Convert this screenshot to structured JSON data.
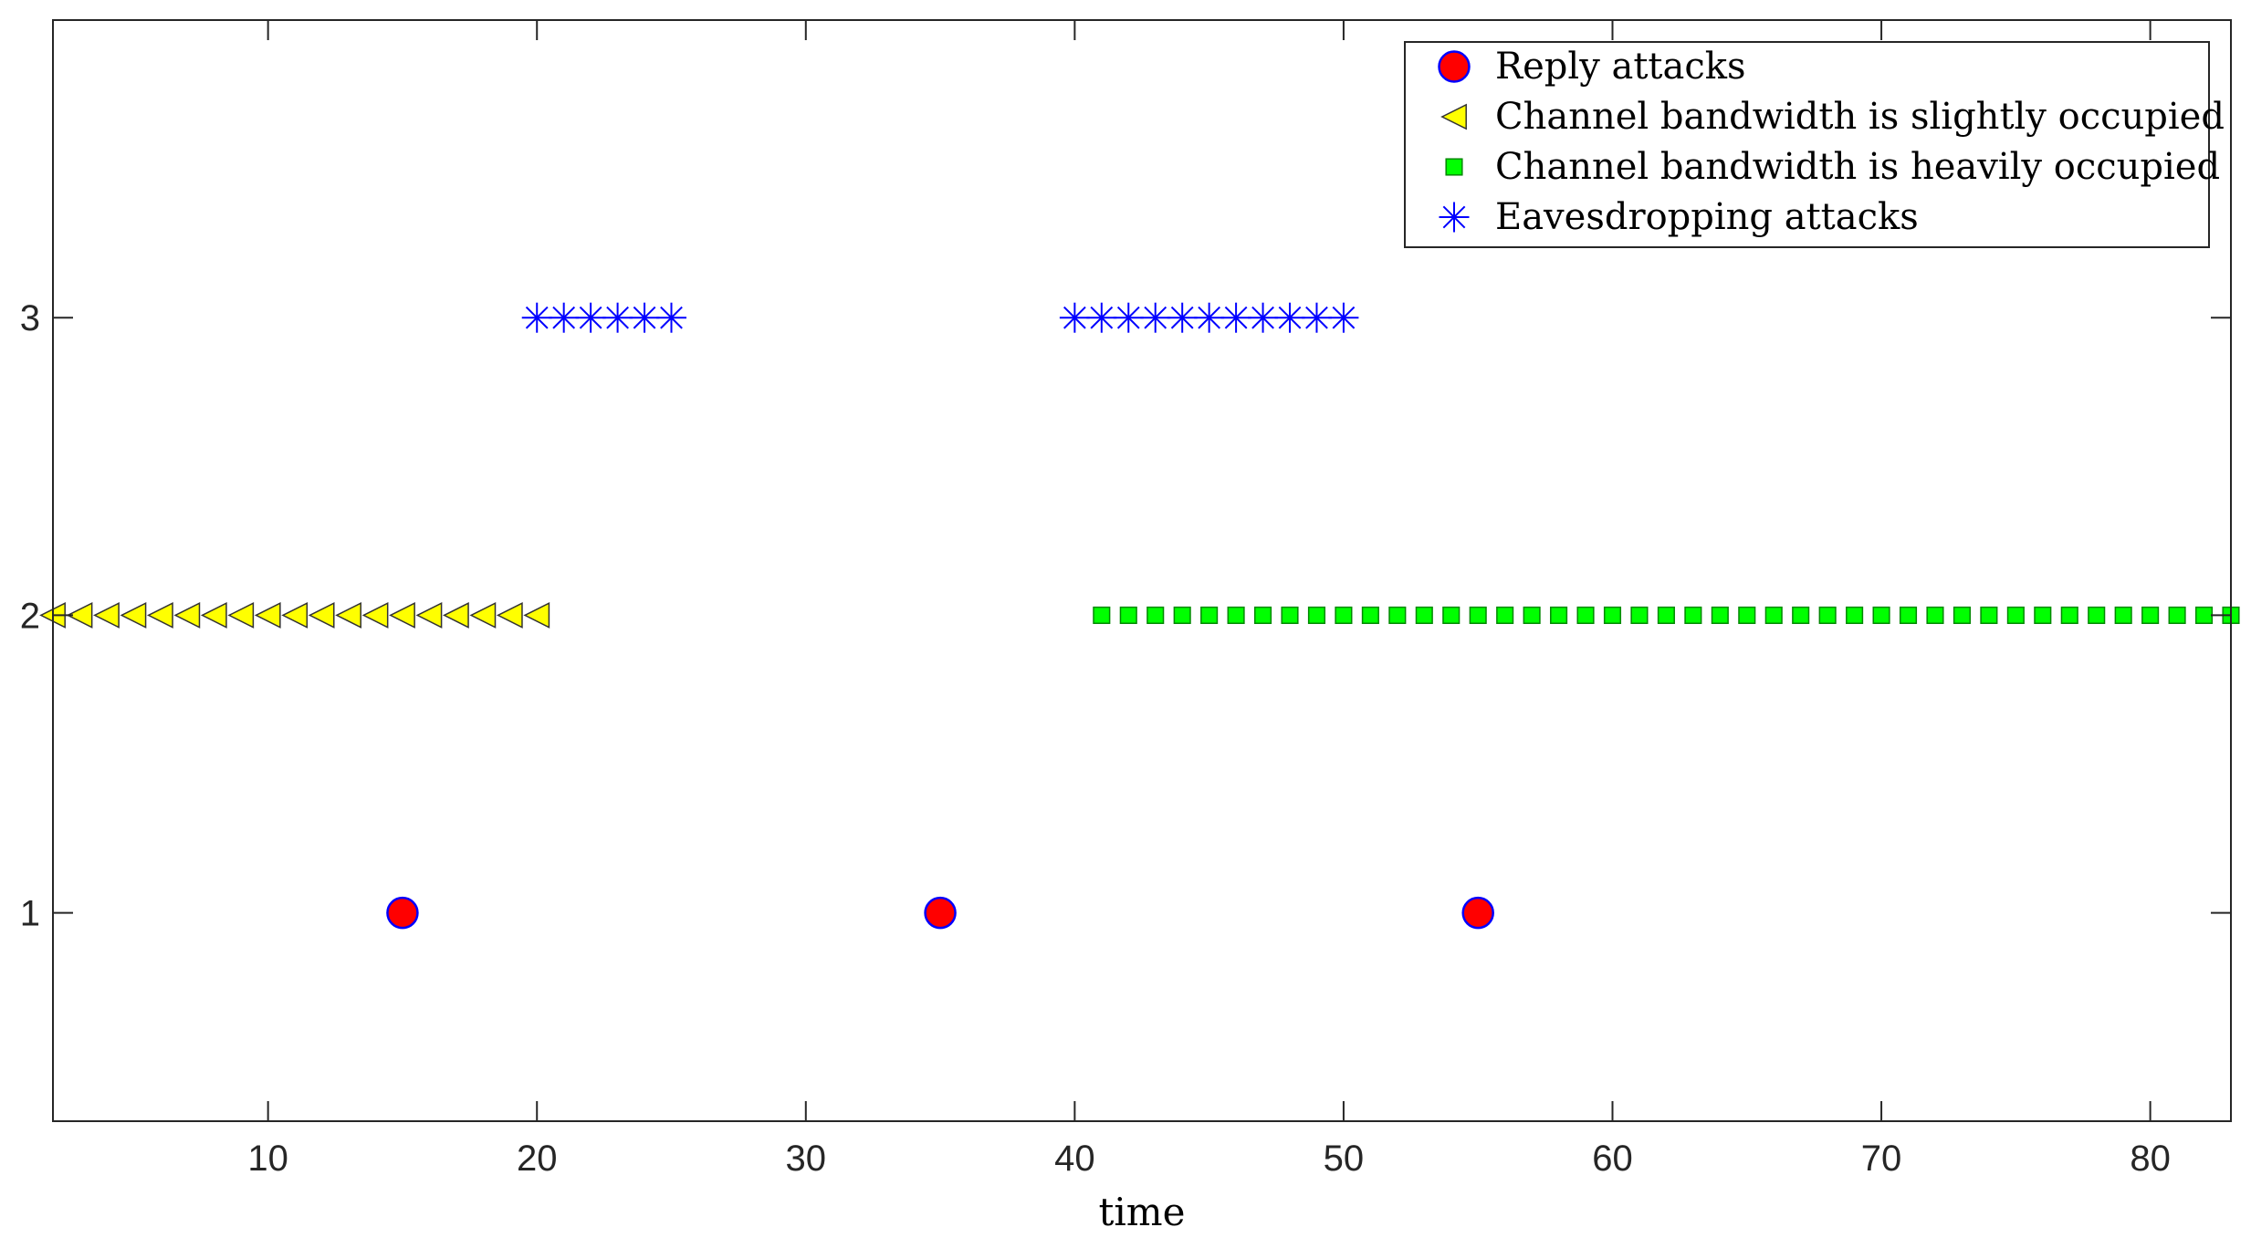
{
  "chart_data": {
    "type": "scatter",
    "title": "",
    "xlabel": "time",
    "ylabel": "",
    "xlim": [
      2,
      83
    ],
    "ylim": [
      0.3,
      4
    ],
    "xticks": [
      10,
      20,
      30,
      40,
      50,
      60,
      70,
      80
    ],
    "yticks": [
      1,
      2,
      3
    ],
    "grid": false,
    "legend_position": "top-right",
    "series": [
      {
        "name": "Reply attacks",
        "marker": "circle",
        "color": "#ff0000",
        "edge_color": "#0000ff",
        "x": [
          15,
          35,
          55
        ],
        "y": [
          1,
          1,
          1
        ]
      },
      {
        "name": "Channel bandwidth is slightly occupied",
        "marker": "triangle-left",
        "color": "#ffff00",
        "edge_color": "#333333",
        "x": [
          2,
          3,
          4,
          5,
          6,
          7,
          8,
          9,
          10,
          11,
          12,
          13,
          14,
          15,
          16,
          17,
          18,
          19,
          20
        ],
        "y": [
          2,
          2,
          2,
          2,
          2,
          2,
          2,
          2,
          2,
          2,
          2,
          2,
          2,
          2,
          2,
          2,
          2,
          2,
          2
        ]
      },
      {
        "name": "Channel bandwidth is heavily occupied",
        "marker": "square",
        "color": "#00ff00",
        "edge_color": "#008800",
        "x": [
          41,
          42,
          43,
          44,
          45,
          46,
          47,
          48,
          49,
          50,
          51,
          52,
          53,
          54,
          55,
          56,
          57,
          58,
          59,
          60,
          61,
          62,
          63,
          64,
          65,
          66,
          67,
          68,
          69,
          70,
          71,
          72,
          73,
          74,
          75,
          76,
          77,
          78,
          79,
          80,
          81,
          82,
          83
        ],
        "y": [
          2,
          2,
          2,
          2,
          2,
          2,
          2,
          2,
          2,
          2,
          2,
          2,
          2,
          2,
          2,
          2,
          2,
          2,
          2,
          2,
          2,
          2,
          2,
          2,
          2,
          2,
          2,
          2,
          2,
          2,
          2,
          2,
          2,
          2,
          2,
          2,
          2,
          2,
          2,
          2,
          2,
          2,
          2
        ]
      },
      {
        "name": "Eavesdropping attacks",
        "marker": "asterisk",
        "color": "#0000ff",
        "edge_color": "#0000ff",
        "x": [
          20,
          21,
          22,
          23,
          24,
          25,
          40,
          41,
          42,
          43,
          44,
          45,
          46,
          47,
          48,
          49,
          50
        ],
        "y": [
          3,
          3,
          3,
          3,
          3,
          3,
          3,
          3,
          3,
          3,
          3,
          3,
          3,
          3,
          3,
          3,
          3
        ]
      }
    ]
  }
}
